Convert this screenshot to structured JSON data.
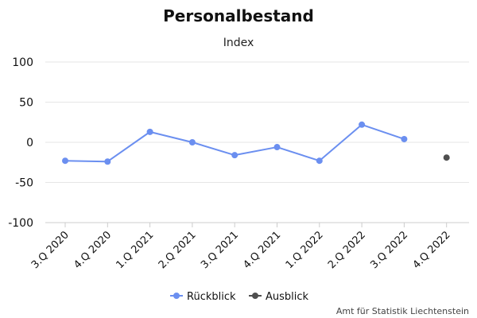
{
  "chart_data": {
    "type": "line",
    "title": "Personalbestand",
    "subtitle": "Index",
    "categories": [
      "3.Q 2020",
      "4.Q 2020",
      "1.Q 2021",
      "2.Q 2021",
      "3.Q 2021",
      "4.Q 2021",
      "1.Q 2022",
      "2.Q 2022",
      "3.Q 2022",
      "4.Q 2022"
    ],
    "series": [
      {
        "name": "Rückblick",
        "color": "#6b8ff0",
        "values": [
          -23,
          -24,
          13,
          0,
          -16,
          -6,
          -23,
          22,
          4,
          null
        ]
      },
      {
        "name": "Ausblick",
        "color": "#4f4f4f",
        "values": [
          null,
          null,
          null,
          null,
          null,
          null,
          null,
          null,
          null,
          -19
        ]
      }
    ],
    "ylim": [
      -100,
      100
    ],
    "yticks": [
      100,
      50,
      0,
      -50,
      -100
    ],
    "grid": true,
    "legend": "bottom-center"
  },
  "credit": "Amt für Statistik Liechtenstein"
}
